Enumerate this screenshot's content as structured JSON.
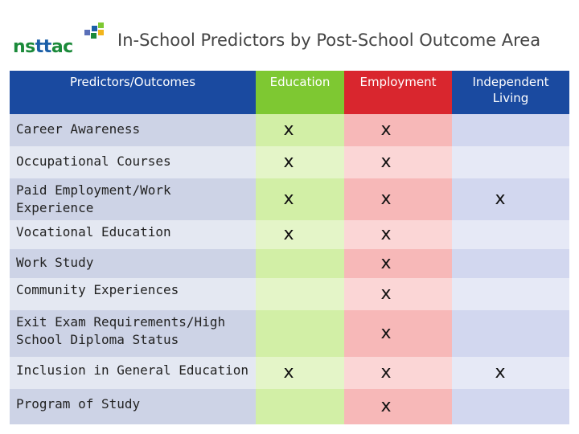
{
  "header": {
    "logo": {
      "part1": "ns",
      "part2": "tt",
      "part3": "ac"
    },
    "title": "In-School Predictors by Post-School Outcome Area"
  },
  "table": {
    "corner_label": "Predictors/Outcomes",
    "columns": [
      {
        "label": "Education",
        "color": "#7ec832"
      },
      {
        "label": "Employment",
        "color": "#d9262e"
      },
      {
        "label": "Independent Living",
        "color": "#5a6fb8"
      }
    ],
    "rows": [
      {
        "label": "Career Awareness",
        "marks": [
          "x",
          "x",
          ""
        ]
      },
      {
        "label": "Occupational Courses",
        "marks": [
          "x",
          "x",
          ""
        ]
      },
      {
        "label": "Paid Employment/Work Experience",
        "marks": [
          "x",
          "x",
          "x"
        ]
      },
      {
        "label": "Vocational Education",
        "marks": [
          "x",
          "x",
          ""
        ]
      },
      {
        "label": "Work Study",
        "marks": [
          "",
          "x",
          ""
        ]
      },
      {
        "label": "Community Experiences",
        "marks": [
          "",
          "x",
          ""
        ]
      },
      {
        "label": "Exit Exam Requirements/High School Diploma Status",
        "marks": [
          "",
          "x",
          ""
        ]
      },
      {
        "label": "Inclusion in General Education",
        "marks": [
          "x",
          "x",
          "x"
        ]
      },
      {
        "label": "Program of Study",
        "marks": [
          "",
          "x",
          ""
        ]
      }
    ]
  },
  "colors": {
    "header_bg": "#1a4aa0",
    "row_light": "#e4e8f2",
    "row_dark": "#cdd3e6",
    "edu_light": "#e4f5c8",
    "edu_dark": "#d2efa6",
    "emp_light": "#fbd6d6",
    "emp_dark": "#f7b8b8",
    "ind_light": "#e6e9f6",
    "ind_dark": "#d2d7ef"
  }
}
